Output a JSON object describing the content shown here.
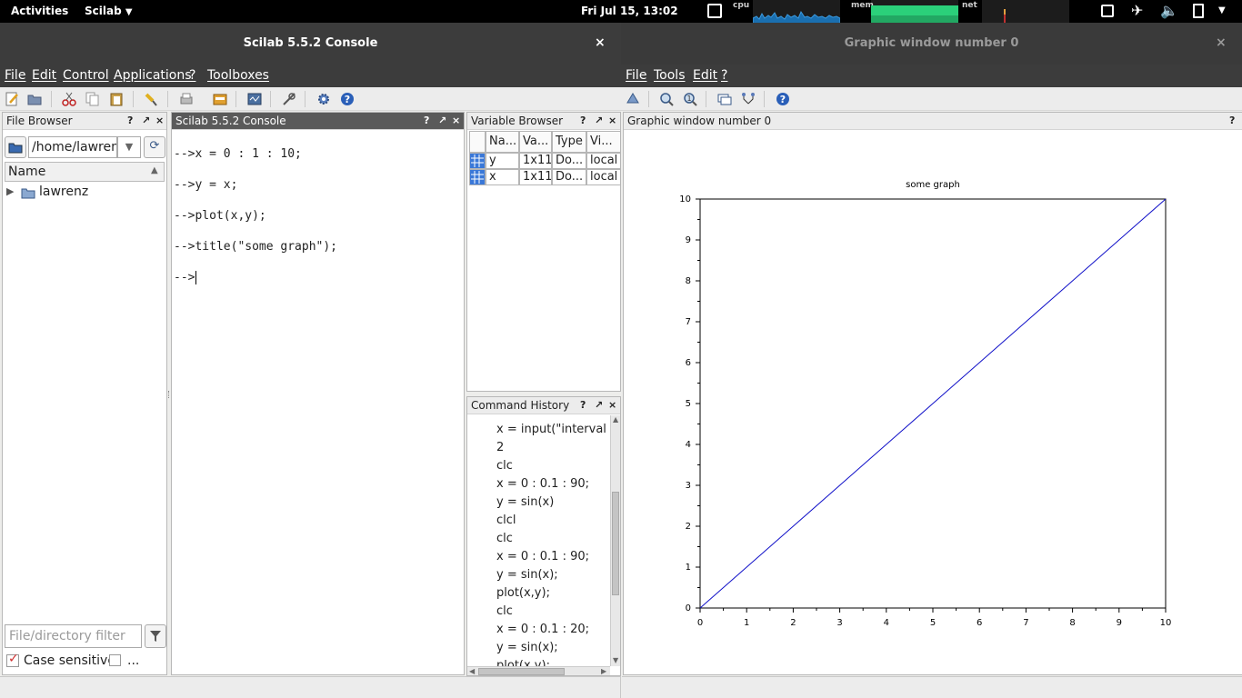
{
  "topbar": {
    "activities": "Activities",
    "app_menu": "Scilab",
    "clock": "Fri Jul 15, 13:02",
    "cpu_label": "cpu",
    "mem_label": "mem",
    "net_label": "net"
  },
  "console_window": {
    "title": "Scilab 5.5.2 Console",
    "close": "×",
    "menu": [
      "File",
      "Edit",
      "Control",
      "Applications",
      "?",
      "Toolboxes"
    ]
  },
  "graphic_window": {
    "title": "Graphic window number 0",
    "close": "×",
    "menu": [
      "File",
      "Tools",
      "Edit",
      "?"
    ],
    "panel_title": "Graphic window number 0",
    "help": "?"
  },
  "file_browser": {
    "title": "File Browser",
    "path": "/home/lawren",
    "column": "Name",
    "tree_item": "lawrenz",
    "filter_placeholder": "File/directory filter",
    "case_sensitive": "Case sensitive",
    "more": "..."
  },
  "console": {
    "title": "Scilab 5.5.2 Console",
    "lines": [
      "-->x = 0 : 1 : 10;",
      "-->y = x;",
      "-->plot(x,y);",
      "-->title(\"some graph\");",
      "-->"
    ]
  },
  "variable_browser": {
    "title": "Variable Browser",
    "headers": [
      "Na...",
      "Va...",
      "Type",
      "Vi..."
    ],
    "rows": [
      {
        "name": "y",
        "value": "1x11",
        "type": "Do...",
        "visibility": "local"
      },
      {
        "name": "x",
        "value": "1x11",
        "type": "Do...",
        "visibility": "local"
      }
    ]
  },
  "command_history": {
    "title": "Command History",
    "items": [
      "clc",
      "x = input(\"interval :",
      "2",
      "clc",
      "x = 0 : 0.1 : 90;",
      "y = sin(x)",
      "clcl",
      "clc",
      "x = 0 : 0.1 : 90;",
      "y = sin(x);",
      "plot(x,y);",
      "clc",
      "x = 0 : 0.1 : 20;",
      "y = sin(x);",
      "plot(x,y);"
    ]
  },
  "panel_controls": {
    "help": "?",
    "undock": "↗",
    "close": "×"
  },
  "colors": {
    "accent_blue": "#1f3fb5",
    "plot_line": "#1010c8",
    "dark_header": "#3c3c3c"
  },
  "chart_data": {
    "type": "line",
    "title": "some graph",
    "x": [
      0,
      1,
      2,
      3,
      4,
      5,
      6,
      7,
      8,
      9,
      10
    ],
    "series": [
      {
        "values": [
          0,
          1,
          2,
          3,
          4,
          5,
          6,
          7,
          8,
          9,
          10
        ]
      }
    ],
    "xlim": [
      0,
      10
    ],
    "ylim": [
      0,
      10
    ],
    "xticks": [
      "0",
      "1",
      "2",
      "3",
      "4",
      "5",
      "6",
      "7",
      "8",
      "9",
      "10"
    ],
    "yticks": [
      "0",
      "1",
      "2",
      "3",
      "4",
      "5",
      "6",
      "7",
      "8",
      "9",
      "10"
    ],
    "grid": false,
    "color": "#1010c8"
  }
}
